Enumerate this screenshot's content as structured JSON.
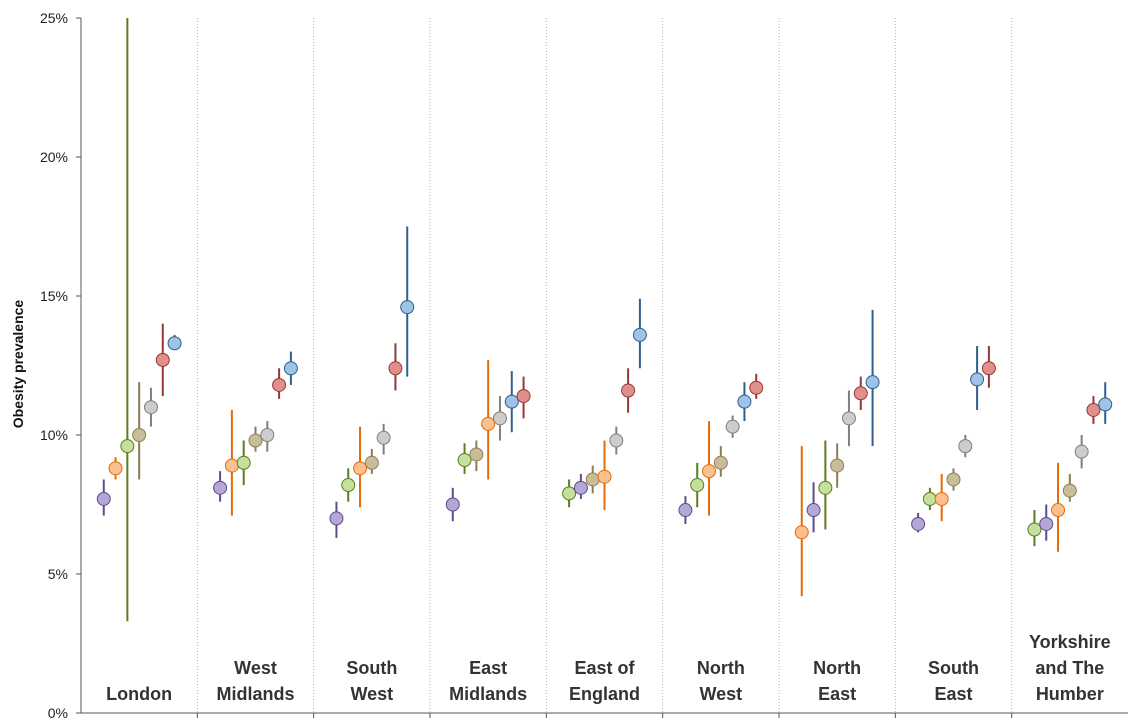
{
  "chart_data": {
    "type": "scatter",
    "title": "",
    "xlabel": "",
    "ylabel": "Obesity prevalence",
    "ylim": [
      0,
      25
    ],
    "y_ticks": [
      "0%",
      "5%",
      "10%",
      "15%",
      "20%",
      "25%"
    ],
    "grid": "vertical dotted separators between regions",
    "legend": "none",
    "marker_colors": {
      "purple": "#b4a7d6",
      "orange": "#fbc08e",
      "green": "#c5df9f",
      "tan": "#c9bc98",
      "grey": "#cccccc",
      "red": "#e08f8d",
      "blue": "#9dc3e6"
    },
    "whisker_colors": {
      "purple": "#5f4b8b",
      "orange": "#e36c09",
      "green": "#5a7d1e",
      "tan": "#8b7d55",
      "grey": "#7f7f7f",
      "red": "#953735",
      "blue": "#2e5f8f"
    },
    "groups": [
      {
        "label_lines": [
          "London"
        ],
        "points": [
          {
            "color": "purple",
            "y": 7.7,
            "low": 7.1,
            "high": 8.4
          },
          {
            "color": "orange",
            "y": 8.8,
            "low": 8.4,
            "high": 9.2
          },
          {
            "color": "green",
            "y": 9.6,
            "low": 3.3,
            "high": 25.0
          },
          {
            "color": "tan",
            "y": 10.0,
            "low": 8.4,
            "high": 11.9
          },
          {
            "color": "grey",
            "y": 11.0,
            "low": 10.3,
            "high": 11.7
          },
          {
            "color": "red",
            "y": 12.7,
            "low": 11.4,
            "high": 14.0
          },
          {
            "color": "blue",
            "y": 13.3,
            "low": 13.1,
            "high": 13.6
          }
        ]
      },
      {
        "label_lines": [
          "West",
          "Midlands"
        ],
        "points": [
          {
            "color": "purple",
            "y": 8.1,
            "low": 7.6,
            "high": 8.7
          },
          {
            "color": "orange",
            "y": 8.9,
            "low": 7.1,
            "high": 10.9
          },
          {
            "color": "green",
            "y": 9.0,
            "low": 8.2,
            "high": 9.8
          },
          {
            "color": "tan",
            "y": 9.8,
            "low": 9.4,
            "high": 10.3
          },
          {
            "color": "grey",
            "y": 10.0,
            "low": 9.4,
            "high": 10.5
          },
          {
            "color": "red",
            "y": 11.8,
            "low": 11.3,
            "high": 12.4
          },
          {
            "color": "blue",
            "y": 12.4,
            "low": 11.8,
            "high": 13.0
          }
        ]
      },
      {
        "label_lines": [
          "South",
          "West"
        ],
        "points": [
          {
            "color": "purple",
            "y": 7.0,
            "low": 6.3,
            "high": 7.6
          },
          {
            "color": "green",
            "y": 8.2,
            "low": 7.6,
            "high": 8.8
          },
          {
            "color": "orange",
            "y": 8.8,
            "low": 7.4,
            "high": 10.3
          },
          {
            "color": "tan",
            "y": 9.0,
            "low": 8.6,
            "high": 9.5
          },
          {
            "color": "grey",
            "y": 9.9,
            "low": 9.3,
            "high": 10.4
          },
          {
            "color": "red",
            "y": 12.4,
            "low": 11.6,
            "high": 13.3
          },
          {
            "color": "blue",
            "y": 14.6,
            "low": 12.1,
            "high": 17.5
          }
        ]
      },
      {
        "label_lines": [
          "East",
          "Midlands"
        ],
        "points": [
          {
            "color": "purple",
            "y": 7.5,
            "low": 6.9,
            "high": 8.1
          },
          {
            "color": "green",
            "y": 9.1,
            "low": 8.6,
            "high": 9.7
          },
          {
            "color": "tan",
            "y": 9.3,
            "low": 8.7,
            "high": 9.8
          },
          {
            "color": "orange",
            "y": 10.4,
            "low": 8.4,
            "high": 12.7
          },
          {
            "color": "grey",
            "y": 10.6,
            "low": 9.8,
            "high": 11.4
          },
          {
            "color": "blue",
            "y": 11.2,
            "low": 10.1,
            "high": 12.3
          },
          {
            "color": "red",
            "y": 11.4,
            "low": 10.6,
            "high": 12.1
          }
        ]
      },
      {
        "label_lines": [
          "East of",
          "England"
        ],
        "points": [
          {
            "color": "green",
            "y": 7.9,
            "low": 7.4,
            "high": 8.4
          },
          {
            "color": "purple",
            "y": 8.1,
            "low": 7.7,
            "high": 8.6
          },
          {
            "color": "tan",
            "y": 8.4,
            "low": 7.9,
            "high": 8.9
          },
          {
            "color": "orange",
            "y": 8.5,
            "low": 7.3,
            "high": 9.8
          },
          {
            "color": "grey",
            "y": 9.8,
            "low": 9.3,
            "high": 10.3
          },
          {
            "color": "red",
            "y": 11.6,
            "low": 10.8,
            "high": 12.4
          },
          {
            "color": "blue",
            "y": 13.6,
            "low": 12.4,
            "high": 14.9
          }
        ]
      },
      {
        "label_lines": [
          "North",
          "West"
        ],
        "points": [
          {
            "color": "purple",
            "y": 7.3,
            "low": 6.8,
            "high": 7.8
          },
          {
            "color": "green",
            "y": 8.2,
            "low": 7.4,
            "high": 9.0
          },
          {
            "color": "orange",
            "y": 8.7,
            "low": 7.1,
            "high": 10.5
          },
          {
            "color": "tan",
            "y": 9.0,
            "low": 8.5,
            "high": 9.6
          },
          {
            "color": "grey",
            "y": 10.3,
            "low": 9.9,
            "high": 10.7
          },
          {
            "color": "blue",
            "y": 11.2,
            "low": 10.5,
            "high": 11.9
          },
          {
            "color": "red",
            "y": 11.7,
            "low": 11.3,
            "high": 12.2
          }
        ]
      },
      {
        "label_lines": [
          "North",
          "East"
        ],
        "points": [
          {
            "color": "orange",
            "y": 6.5,
            "low": 4.2,
            "high": 9.6
          },
          {
            "color": "purple",
            "y": 7.3,
            "low": 6.5,
            "high": 8.3
          },
          {
            "color": "green",
            "y": 8.1,
            "low": 6.6,
            "high": 9.8
          },
          {
            "color": "tan",
            "y": 8.9,
            "low": 8.1,
            "high": 9.7
          },
          {
            "color": "grey",
            "y": 10.6,
            "low": 9.6,
            "high": 11.6
          },
          {
            "color": "red",
            "y": 11.5,
            "low": 10.9,
            "high": 12.1
          },
          {
            "color": "blue",
            "y": 11.9,
            "low": 9.6,
            "high": 14.5
          }
        ]
      },
      {
        "label_lines": [
          "South",
          "East"
        ],
        "points": [
          {
            "color": "purple",
            "y": 6.8,
            "low": 6.5,
            "high": 7.2
          },
          {
            "color": "green",
            "y": 7.7,
            "low": 7.3,
            "high": 8.1
          },
          {
            "color": "orange",
            "y": 7.7,
            "low": 6.9,
            "high": 8.6
          },
          {
            "color": "tan",
            "y": 8.4,
            "low": 8.0,
            "high": 8.8
          },
          {
            "color": "grey",
            "y": 9.6,
            "low": 9.2,
            "high": 10.0
          },
          {
            "color": "blue",
            "y": 12.0,
            "low": 10.9,
            "high": 13.2
          },
          {
            "color": "red",
            "y": 12.4,
            "low": 11.7,
            "high": 13.2
          }
        ]
      },
      {
        "label_lines": [
          "Yorkshire",
          "and The",
          "Humber"
        ],
        "points": [
          {
            "color": "green",
            "y": 6.6,
            "low": 6.0,
            "high": 7.3
          },
          {
            "color": "purple",
            "y": 6.8,
            "low": 6.2,
            "high": 7.5
          },
          {
            "color": "orange",
            "y": 7.3,
            "low": 5.8,
            "high": 9.0
          },
          {
            "color": "tan",
            "y": 8.0,
            "low": 7.6,
            "high": 8.6
          },
          {
            "color": "grey",
            "y": 9.4,
            "low": 8.8,
            "high": 10.0
          },
          {
            "color": "red",
            "y": 10.9,
            "low": 10.4,
            "high": 11.4
          },
          {
            "color": "blue",
            "y": 11.1,
            "low": 10.4,
            "high": 11.9
          }
        ]
      }
    ]
  }
}
